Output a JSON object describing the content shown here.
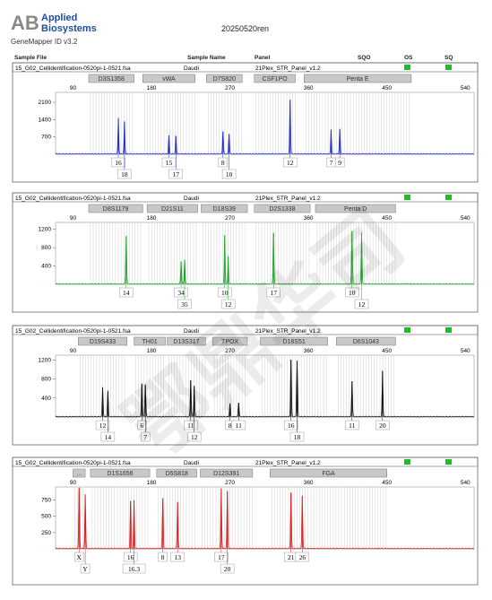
{
  "header": {
    "brand_line1": "Applied",
    "brand_line2": "Biosystems",
    "logo_letters": "AB",
    "software": "GeneMapper ID v3.2",
    "run_name": "20250520ren",
    "columns": [
      "Sample File",
      "Sample Name",
      "Panel",
      "SQO",
      "OS",
      "SQ"
    ]
  },
  "watermark": "鄂鼎华司",
  "colors": {
    "blue": "#2231c8",
    "green": "#22a82c",
    "black": "#111111",
    "red": "#d81f1f",
    "status": "#19c21c"
  },
  "chart_data": [
    {
      "type": "line",
      "sample_file": "15_G02_Cellidentification-0520pi-1-0521.fsa",
      "sample_name": "Daudi",
      "panel": "21Plex_STR_Panel_v1.2",
      "color": "blue",
      "xlim": [
        70,
        550
      ],
      "x_ticks": [
        90,
        180,
        270,
        360,
        450,
        540
      ],
      "ylim": [
        0,
        2500
      ],
      "y_ticks": [
        700,
        1400,
        2100
      ],
      "loci": [
        {
          "name": "D3S1358",
          "range": [
            108,
            160
          ]
        },
        {
          "name": "vWA",
          "range": [
            170,
            230
          ]
        },
        {
          "name": "D7S820",
          "range": [
            243,
            284
          ]
        },
        {
          "name": "CSF1PO",
          "range": [
            298,
            345
          ]
        },
        {
          "name": "Penta E",
          "range": [
            355,
            478
          ]
        }
      ],
      "peaks": [
        {
          "x": 142,
          "h": 1450
        },
        {
          "x": 149,
          "h": 1300
        },
        {
          "x": 200,
          "h": 750
        },
        {
          "x": 208,
          "h": 720
        },
        {
          "x": 262,
          "h": 920
        },
        {
          "x": 269,
          "h": 820
        },
        {
          "x": 339,
          "h": 2200
        },
        {
          "x": 386,
          "h": 980
        },
        {
          "x": 396,
          "h": 1000
        }
      ],
      "alleles": [
        {
          "label": "16",
          "x": 142,
          "row": 0
        },
        {
          "label": "18",
          "x": 149,
          "row": 1
        },
        {
          "label": "15",
          "x": 200,
          "row": 0
        },
        {
          "label": "17",
          "x": 208,
          "row": 1
        },
        {
          "label": "8",
          "x": 262,
          "row": 0
        },
        {
          "label": "10",
          "x": 269,
          "row": 1
        },
        {
          "label": "12",
          "x": 339,
          "row": 0
        },
        {
          "label": "7",
          "x": 386,
          "row": 0
        },
        {
          "label": "9",
          "x": 396,
          "row": 0
        }
      ]
    },
    {
      "type": "line",
      "sample_file": "15_G02_Cellidentification-0520pi-1-0521.fsa",
      "sample_name": "Daudi",
      "panel": "21Plex_STR_Panel_v1.2",
      "color": "green",
      "xlim": [
        70,
        550
      ],
      "x_ticks": [
        90,
        180,
        270,
        360,
        450,
        540
      ],
      "ylim": [
        0,
        1350
      ],
      "y_ticks": [
        400,
        800,
        1200
      ],
      "loci": [
        {
          "name": "D8S1179",
          "range": [
            108,
            170
          ]
        },
        {
          "name": "D21S11",
          "range": [
            175,
            233
          ]
        },
        {
          "name": "D18S39",
          "range": [
            237,
            290
          ]
        },
        {
          "name": "D2S1338",
          "range": [
            298,
            362
          ]
        },
        {
          "name": "Penta D",
          "range": [
            368,
            460
          ]
        }
      ],
      "peaks": [
        {
          "x": 151,
          "h": 1050
        },
        {
          "x": 214,
          "h": 500
        },
        {
          "x": 218,
          "h": 530
        },
        {
          "x": 264,
          "h": 1060
        },
        {
          "x": 268,
          "h": 600
        },
        {
          "x": 320,
          "h": 1120
        },
        {
          "x": 410,
          "h": 1160
        },
        {
          "x": 421,
          "h": 1120
        }
      ],
      "alleles": [
        {
          "label": "14",
          "x": 151,
          "row": 0
        },
        {
          "label": "34",
          "x": 214,
          "row": 0
        },
        {
          "label": "35",
          "x": 218,
          "row": 1
        },
        {
          "label": "10",
          "x": 264,
          "row": 0
        },
        {
          "label": "12",
          "x": 268,
          "row": 1
        },
        {
          "label": "17",
          "x": 320,
          "row": 0
        },
        {
          "label": "10",
          "x": 410,
          "row": 0
        },
        {
          "label": "12",
          "x": 421,
          "row": 1
        }
      ]
    },
    {
      "type": "line",
      "sample_file": "15_G02_Cellidentification-0520pi-1-0521.fsa",
      "sample_name": "Daudi",
      "panel": "21Plex_STR_Panel_v1.2",
      "color": "black",
      "xlim": [
        70,
        550
      ],
      "x_ticks": [
        90,
        180,
        270,
        360,
        450,
        540
      ],
      "ylim": [
        0,
        1300
      ],
      "y_ticks": [
        400,
        800,
        1200
      ],
      "loci": [
        {
          "name": "D19S433",
          "range": [
            96,
            152
          ]
        },
        {
          "name": "TH01",
          "range": [
            160,
            196
          ]
        },
        {
          "name": "D13S317",
          "range": [
            198,
            242
          ]
        },
        {
          "name": "TPOX",
          "range": [
            250,
            290
          ]
        },
        {
          "name": "D18S51",
          "range": [
            305,
            382
          ]
        },
        {
          "name": "D6S1043",
          "range": [
            392,
            460
          ]
        }
      ],
      "peaks": [
        {
          "x": 124,
          "h": 620
        },
        {
          "x": 130,
          "h": 540
        },
        {
          "x": 169,
          "h": 700
        },
        {
          "x": 173,
          "h": 680
        },
        {
          "x": 225,
          "h": 770
        },
        {
          "x": 229,
          "h": 650
        },
        {
          "x": 270,
          "h": 280
        },
        {
          "x": 280,
          "h": 300
        },
        {
          "x": 340,
          "h": 1200
        },
        {
          "x": 347,
          "h": 1180
        },
        {
          "x": 410,
          "h": 750
        },
        {
          "x": 445,
          "h": 960
        }
      ],
      "alleles": [
        {
          "label": "12",
          "x": 124,
          "row": 0
        },
        {
          "label": "14",
          "x": 130,
          "row": 1
        },
        {
          "label": "6",
          "x": 169,
          "row": 0
        },
        {
          "label": "7",
          "x": 173,
          "row": 1
        },
        {
          "label": "11",
          "x": 225,
          "row": 0
        },
        {
          "label": "12",
          "x": 229,
          "row": 1
        },
        {
          "label": "8",
          "x": 270,
          "row": 0
        },
        {
          "label": "11",
          "x": 280,
          "row": 0
        },
        {
          "label": "16",
          "x": 340,
          "row": 0
        },
        {
          "label": "18",
          "x": 347,
          "row": 1
        },
        {
          "label": "11",
          "x": 410,
          "row": 0
        },
        {
          "label": "20",
          "x": 445,
          "row": 0
        }
      ]
    },
    {
      "type": "line",
      "sample_file": "15_G02_Cellidentification-0520pi-1-0521.fsa",
      "sample_name": "Daudi",
      "panel": "21Plex_STR_Panel_v1.2",
      "color": "red",
      "xlim": [
        70,
        550
      ],
      "x_ticks": [
        90,
        180,
        270,
        360,
        450,
        540
      ],
      "ylim": [
        0,
        950
      ],
      "y_ticks": [
        250,
        500,
        750
      ],
      "loci": [
        {
          "name": "...",
          "range": [
            90,
            104
          ]
        },
        {
          "name": "D1S1656",
          "range": [
            110,
            178
          ]
        },
        {
          "name": "D5S818",
          "range": [
            186,
            232
          ]
        },
        {
          "name": "D12S391",
          "range": [
            236,
            296
          ]
        },
        {
          "name": "FGA",
          "range": [
            316,
            450
          ]
        }
      ],
      "peaks": [
        {
          "x": 97,
          "h": 930
        },
        {
          "x": 104,
          "h": 830
        },
        {
          "x": 156,
          "h": 730
        },
        {
          "x": 160,
          "h": 740
        },
        {
          "x": 193,
          "h": 770
        },
        {
          "x": 210,
          "h": 720
        },
        {
          "x": 260,
          "h": 920
        },
        {
          "x": 267,
          "h": 880
        },
        {
          "x": 340,
          "h": 860
        },
        {
          "x": 353,
          "h": 810
        }
      ],
      "alleles": [
        {
          "label": "X",
          "x": 97,
          "row": 0
        },
        {
          "label": "Y",
          "x": 104,
          "row": 1
        },
        {
          "label": "16",
          "x": 156,
          "row": 0
        },
        {
          "label": "16.3",
          "x": 160,
          "row": 1
        },
        {
          "label": "8",
          "x": 193,
          "row": 0
        },
        {
          "label": "13",
          "x": 210,
          "row": 0
        },
        {
          "label": "17",
          "x": 260,
          "row": 0
        },
        {
          "label": "20",
          "x": 267,
          "row": 1
        },
        {
          "label": "21",
          "x": 340,
          "row": 0
        },
        {
          "label": "26",
          "x": 353,
          "row": 0
        }
      ]
    }
  ]
}
